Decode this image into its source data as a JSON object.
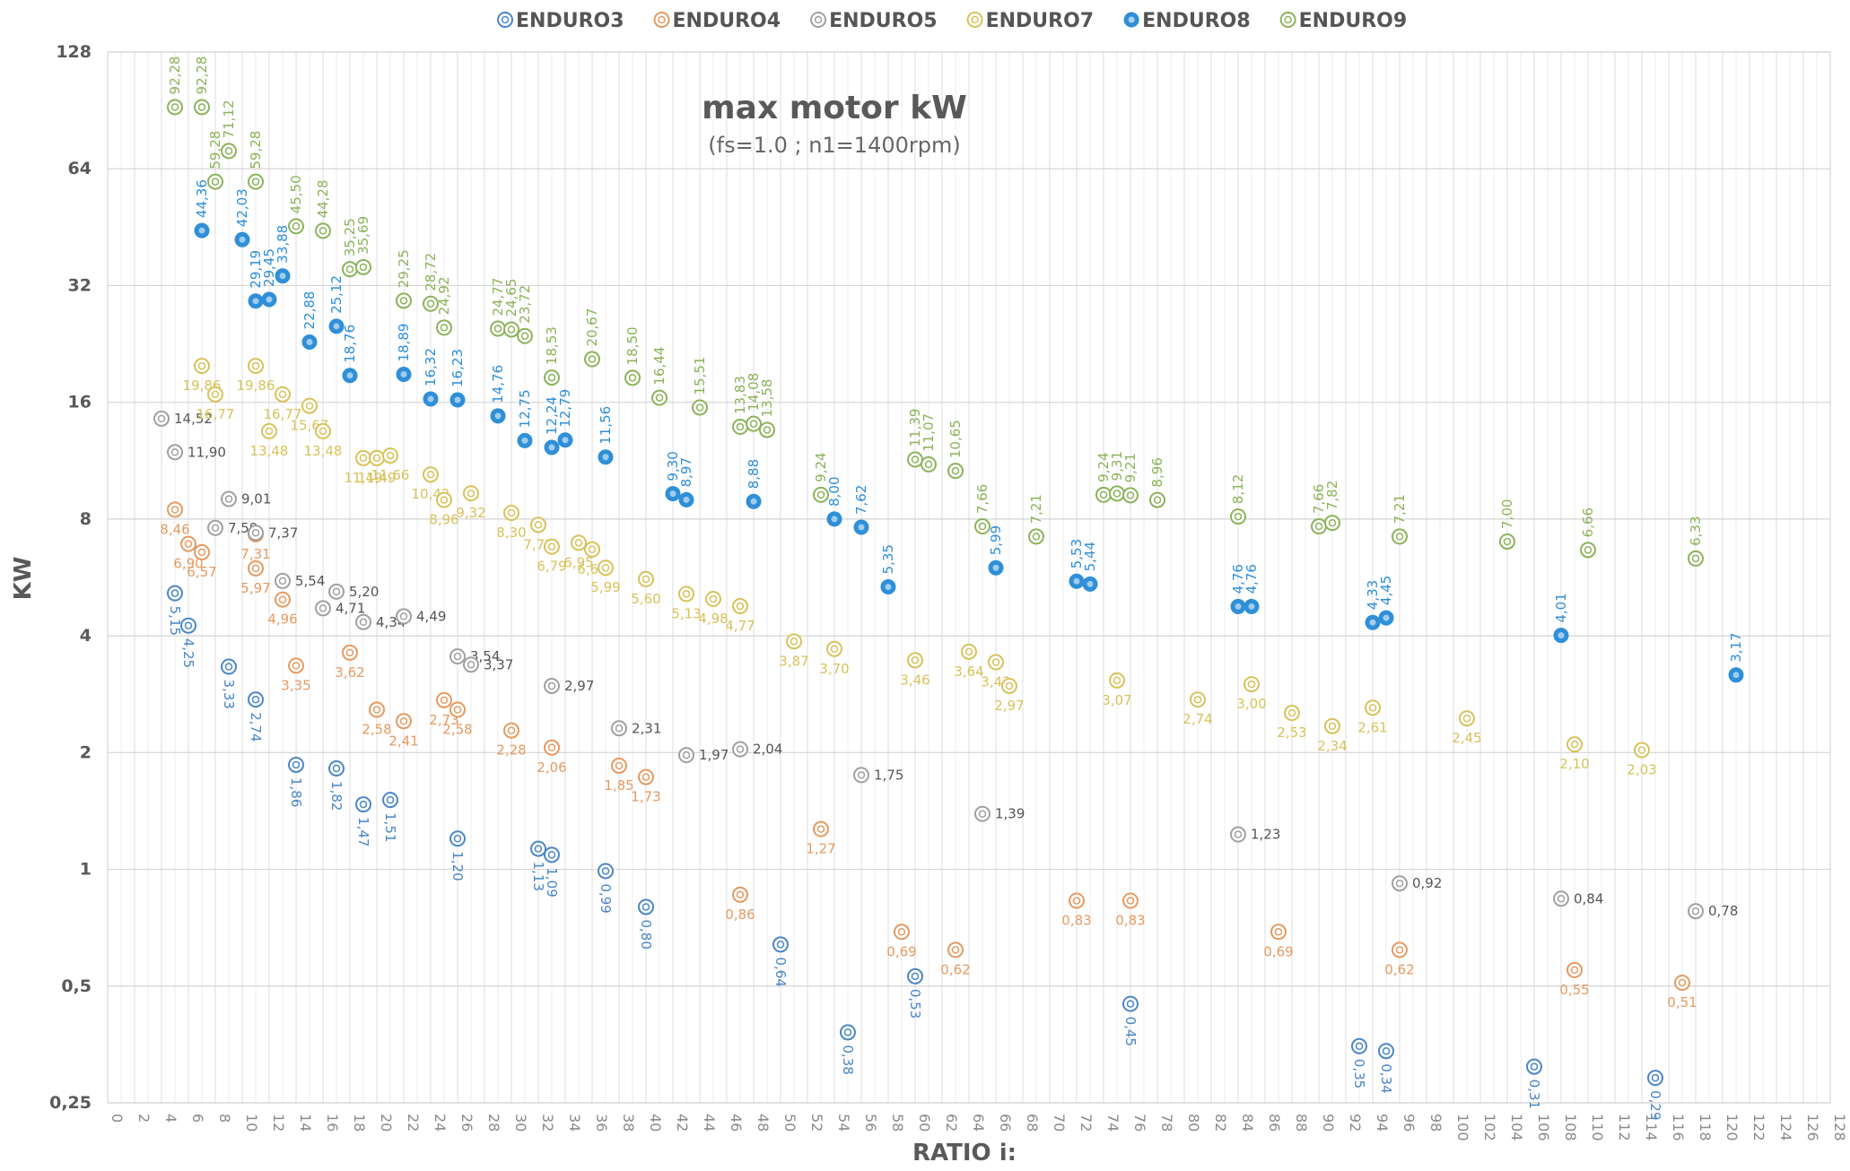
{
  "chart_data": {
    "type": "scatter",
    "title": "max motor kW",
    "subtitle": "(fs=1.0 ; n1=1400rpm)",
    "xlabel": "RATIO i:",
    "ylabel": "KW",
    "xlim": [
      0,
      128
    ],
    "ylim": [
      0.25,
      128
    ],
    "yscale": "log2",
    "grid": true,
    "legend_position": "top",
    "x_ticks": [
      "0",
      "2",
      "4",
      "6",
      "8",
      "10",
      "12",
      "14",
      "16",
      "18",
      "20",
      "22",
      "24",
      "26",
      "28",
      "30",
      "32",
      "34",
      "36",
      "38",
      "40",
      "42",
      "44",
      "46",
      "48",
      "50",
      "52",
      "54",
      "56",
      "58",
      "60",
      "62",
      "64",
      "66",
      "68",
      "70",
      "72",
      "74",
      "76",
      "78",
      "80",
      "82",
      "84",
      "86",
      "88",
      "90",
      "92",
      "94",
      "96",
      "98",
      "100",
      "102",
      "104",
      "106",
      "108",
      "110",
      "112",
      "114",
      "116",
      "118",
      "120",
      "122",
      "124",
      "126",
      "128"
    ],
    "y_ticks": [
      "0,25",
      "0,5",
      "1",
      "2",
      "4",
      "8",
      "16",
      "32",
      "64",
      "128"
    ],
    "series": [
      {
        "name": "ENDURO3",
        "color": "#4a86c8",
        "filled": false,
        "x": [
          5,
          6,
          9,
          11,
          14,
          17,
          19,
          21,
          26,
          32,
          33,
          37,
          40,
          50,
          55,
          60,
          76,
          93,
          95,
          106,
          115
        ],
        "y": [
          5.15,
          4.25,
          3.33,
          2.74,
          1.86,
          1.82,
          1.47,
          1.51,
          1.2,
          1.13,
          1.09,
          0.99,
          0.8,
          0.64,
          0.38,
          0.53,
          0.45,
          0.35,
          0.34,
          0.31,
          0.29
        ],
        "labels": [
          "5,15",
          "4,25",
          "3,33",
          "2,74",
          "1,86",
          "1,82",
          "1,47",
          "1,51",
          "1,20",
          "1,13",
          "1,09",
          "0,99",
          "0,80",
          "0,64",
          "0,38",
          "0,53",
          "0,45",
          "0,35",
          "0,34",
          "0,31",
          "0,29"
        ]
      },
      {
        "name": "ENDURO4",
        "color": "#e59a61",
        "filled": false,
        "x": [
          5,
          6,
          7,
          11,
          13,
          11,
          14,
          18,
          20,
          22,
          25,
          26,
          30,
          33,
          38,
          40,
          47,
          53,
          59,
          63,
          72,
          76,
          87,
          96,
          109,
          117
        ],
        "y": [
          8.46,
          6.9,
          6.57,
          5.97,
          4.96,
          7.31,
          3.35,
          3.62,
          2.58,
          2.41,
          2.73,
          2.58,
          2.28,
          2.06,
          1.85,
          1.73,
          0.86,
          1.27,
          0.69,
          0.62,
          0.83,
          0.83,
          0.69,
          0.62,
          0.55,
          0.51
        ],
        "labels": [
          "8,46",
          "6,90",
          "6,57",
          "5,97",
          "4,96",
          "7,31",
          "3,35",
          "3,62",
          "2,58",
          "2,41",
          "2,73",
          "2,58",
          "2,28",
          "2,06",
          "1,85",
          "1,73",
          "0,86",
          "1,27",
          "0,69",
          "0,62",
          "0,83",
          "0,83",
          "0,69",
          "0,62",
          "0,55",
          "0,51"
        ]
      },
      {
        "name": "ENDURO5",
        "color": "#a0a0a0",
        "filled": false,
        "x": [
          4,
          5,
          8,
          9,
          11,
          13,
          16,
          17,
          19,
          22,
          26,
          27,
          33,
          38,
          43,
          47,
          56,
          65,
          84,
          96,
          108,
          118
        ],
        "y": [
          14.52,
          11.9,
          7.59,
          9.01,
          7.37,
          5.54,
          4.71,
          5.2,
          4.34,
          4.49,
          3.54,
          3.37,
          2.97,
          2.31,
          1.97,
          2.04,
          1.75,
          1.39,
          1.23,
          0.92,
          0.84,
          0.78
        ],
        "labels": [
          "14,52",
          "11,90",
          "7,59",
          "9,01",
          "7,37",
          "5,54",
          "4,71",
          "5,20",
          "4,34",
          "4,49",
          "3,54",
          "3,37",
          "2,97",
          "2,31",
          "1,97",
          "2,04",
          "1,75",
          "1,39",
          "1,23",
          "0,92",
          "0,84",
          "0,78"
        ]
      },
      {
        "name": "ENDURO7",
        "color": "#d8c25a",
        "filled": false,
        "x": [
          7,
          8,
          11,
          12,
          13,
          15,
          16,
          19,
          20,
          21,
          24,
          25,
          27,
          30,
          32,
          33,
          35,
          36,
          37,
          40,
          43,
          45,
          47,
          51,
          54,
          60,
          64,
          66,
          67,
          75,
          81,
          85,
          88,
          91,
          94,
          101,
          109,
          114
        ],
        "y": [
          19.86,
          16.77,
          19.86,
          13.48,
          16.77,
          15.67,
          13.48,
          11.49,
          11.49,
          11.66,
          10.42,
          8.96,
          9.32,
          8.3,
          7.73,
          6.79,
          6.95,
          6.68,
          5.99,
          5.6,
          5.13,
          4.98,
          4.77,
          3.87,
          3.7,
          3.46,
          3.64,
          3.42,
          2.97,
          3.07,
          2.74,
          3.0,
          2.53,
          2.34,
          2.61,
          2.45,
          2.1,
          2.03
        ],
        "labels": [
          "19,86",
          "16,77",
          "19,86",
          "13,48",
          "16,77",
          "15,67",
          "13,48",
          "11,49",
          "11,49",
          "11,66",
          "10,42",
          "8,96",
          "9,32",
          "8,30",
          "7,73",
          "6,79",
          "6,95",
          "6,68",
          "5,99",
          "5,60",
          "5,13",
          "4,98",
          "4,77",
          "3,87",
          "3,70",
          "3,46",
          "3,64",
          "3,42",
          "2,97",
          "3,07",
          "2,74",
          "3,00",
          "2,53",
          "2,34",
          "2,61",
          "2,45",
          "2,10",
          "2,03"
        ]
      },
      {
        "name": "ENDURO8",
        "color": "#2f8fd8",
        "filled": true,
        "x": [
          7,
          10,
          11,
          12,
          13,
          15,
          17,
          18,
          22,
          24,
          26,
          29,
          31,
          33,
          34,
          37,
          42,
          43,
          48,
          54,
          56,
          58,
          66,
          72,
          73,
          84,
          85,
          94,
          95,
          108,
          121
        ],
        "y": [
          44.36,
          42.03,
          29.19,
          29.45,
          33.88,
          22.88,
          25.12,
          18.76,
          18.89,
          16.32,
          16.23,
          14.76,
          12.75,
          12.24,
          12.79,
          11.56,
          9.3,
          8.97,
          8.88,
          8.0,
          7.62,
          5.35,
          5.99,
          5.53,
          5.44,
          4.76,
          4.76,
          4.33,
          4.45,
          4.01,
          3.17
        ],
        "labels": [
          "44,36",
          "42,03",
          "29,19",
          "29,45",
          "33,88",
          "22,88",
          "25,12",
          "18,76",
          "18,89",
          "16,32",
          "16,23",
          "14,76",
          "12,75",
          "12,24",
          "12,79",
          "11,56",
          "9,30",
          "8,97",
          "8,88",
          "8,00",
          "7,62",
          "5,35",
          "5,99",
          "5,53",
          "5,44",
          "4,76",
          "4,76",
          "4,33",
          "4,45",
          "4,01",
          "3,17"
        ]
      },
      {
        "name": "ENDURO9",
        "color": "#8bb35a",
        "filled": false,
        "x": [
          5,
          7,
          8,
          9,
          11,
          14,
          16,
          18,
          19,
          22,
          24,
          25,
          29,
          30,
          31,
          33,
          36,
          39,
          41,
          44,
          47,
          48,
          49,
          53,
          60,
          61,
          63,
          65,
          69,
          74,
          75,
          76,
          78,
          84,
          90,
          91,
          96,
          104,
          110,
          118
        ],
        "y": [
          92.28,
          92.28,
          59.28,
          71.12,
          59.28,
          45.5,
          44.28,
          35.25,
          35.69,
          29.25,
          28.72,
          24.92,
          24.77,
          24.65,
          23.72,
          18.53,
          20.67,
          18.5,
          16.44,
          15.51,
          13.83,
          14.08,
          13.58,
          9.24,
          11.39,
          11.07,
          10.65,
          7.66,
          7.21,
          9.24,
          9.31,
          9.21,
          8.96,
          8.12,
          7.66,
          7.82,
          7.21,
          7.0,
          6.66,
          6.33
        ],
        "labels": [
          "92,28",
          "92,28",
          "59,28",
          "71,12",
          "59,28",
          "45,50",
          "44,28",
          "35,25",
          "35,69",
          "29,25",
          "28,72",
          "24,92",
          "24,77",
          "24,65",
          "23,72",
          "18,53",
          "20,67",
          "18,50",
          "16,44",
          "15,51",
          "13,83",
          "14,08",
          "13,58",
          "9,24",
          "11,39",
          "11,07",
          "10,65",
          "7,66",
          "7,21",
          "9,24",
          "9,31",
          "9,21",
          "8,96",
          "8,12",
          "7,66",
          "7,82",
          "7,21",
          "7,00",
          "6,66",
          "6,33"
        ]
      }
    ]
  }
}
